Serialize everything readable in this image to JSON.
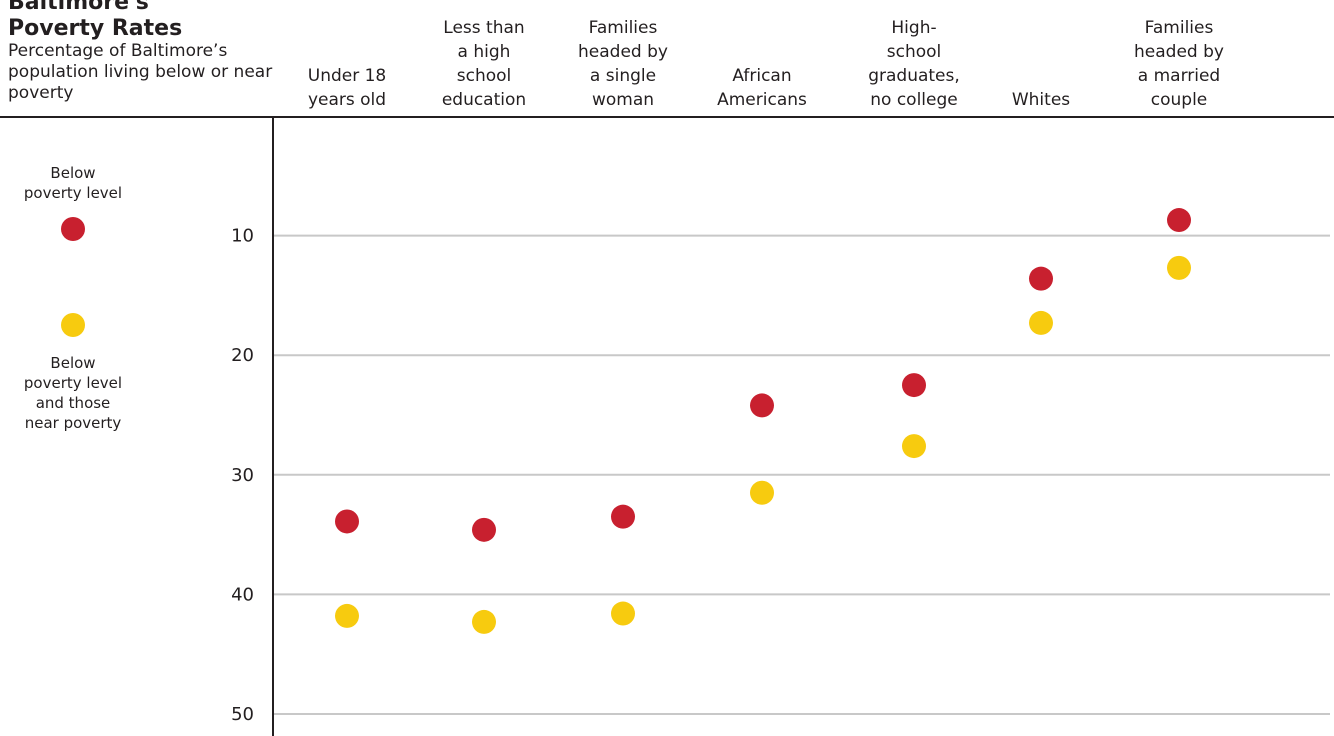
{
  "header": {
    "title_line1": "Baltimore's",
    "title_line2": "Poverty Rates",
    "subtitle": "Percentage of Baltimore’s population living below or near poverty"
  },
  "colors": {
    "below": "#c8202f",
    "near": "#f7cb0f",
    "grid": "#c8c8c8",
    "axis": "#231f20"
  },
  "chart_data": {
    "type": "scatter",
    "title": "Baltimore's Poverty Rates",
    "subtitle": "Percentage of Baltimore’s population living below or near poverty",
    "categories": [
      [
        "Under 18",
        "years old"
      ],
      [
        "Less than",
        "a high",
        "school",
        "education"
      ],
      [
        "Families",
        "headed by",
        "a single",
        "woman"
      ],
      [
        "African",
        "Americans"
      ],
      [
        "High-",
        "school",
        "graduates,",
        "no college"
      ],
      [
        "Whites"
      ],
      [
        "Families",
        "headed by",
        "a married",
        "couple"
      ]
    ],
    "series": [
      {
        "name": "Below poverty level",
        "name_lines": [
          "Below",
          "poverty level"
        ],
        "values": [
          33.9,
          34.6,
          33.5,
          24.2,
          22.5,
          13.6,
          8.7
        ]
      },
      {
        "name": "Below poverty level and those near poverty",
        "name_lines": [
          "Below",
          "poverty level",
          "and those",
          "near poverty"
        ],
        "values": [
          41.8,
          42.3,
          41.6,
          31.5,
          27.6,
          17.3,
          12.7
        ]
      }
    ],
    "y_ticks": [
      10,
      20,
      30,
      40,
      50
    ],
    "ylim": [
      0,
      50
    ],
    "y_inverted": true,
    "grid": true,
    "legend_position": "left"
  }
}
